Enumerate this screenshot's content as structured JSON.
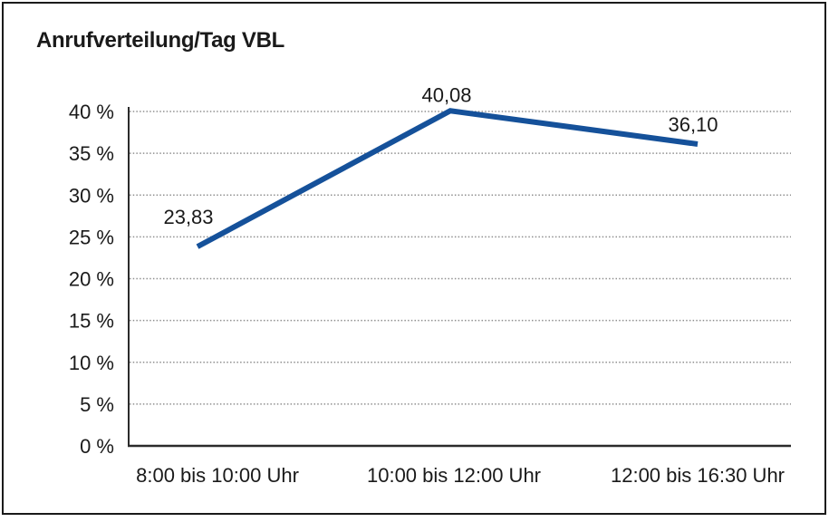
{
  "window": {
    "background": "#ffffff",
    "border_color": "#1a1a1a"
  },
  "chart_data": {
    "type": "line",
    "title": "Anrufverteilung/Tag VBL",
    "categories": [
      "8:00 bis 10:00 Uhr",
      "10:00 bis 12:00 Uhr",
      "12:00 bis 16:30 Uhr"
    ],
    "values": [
      23.83,
      40.08,
      36.1
    ],
    "point_labels": [
      "23,83",
      "40,08",
      "36,10"
    ],
    "xlabel": "",
    "ylabel": "",
    "ylim": [
      0,
      40
    ],
    "ytick_step": 5,
    "ytick_labels": [
      "0 %",
      "5 %",
      "10 %",
      "15 %",
      "20 %",
      "25 %",
      "30 %",
      "35 %",
      "40 %"
    ],
    "grid": "horizontal-dotted",
    "legend": "none",
    "line_color": "#15519a",
    "gridline_color": "#8f8f8f",
    "axis_color": "#2b2b2b",
    "text_color": "#1a1a1a"
  }
}
